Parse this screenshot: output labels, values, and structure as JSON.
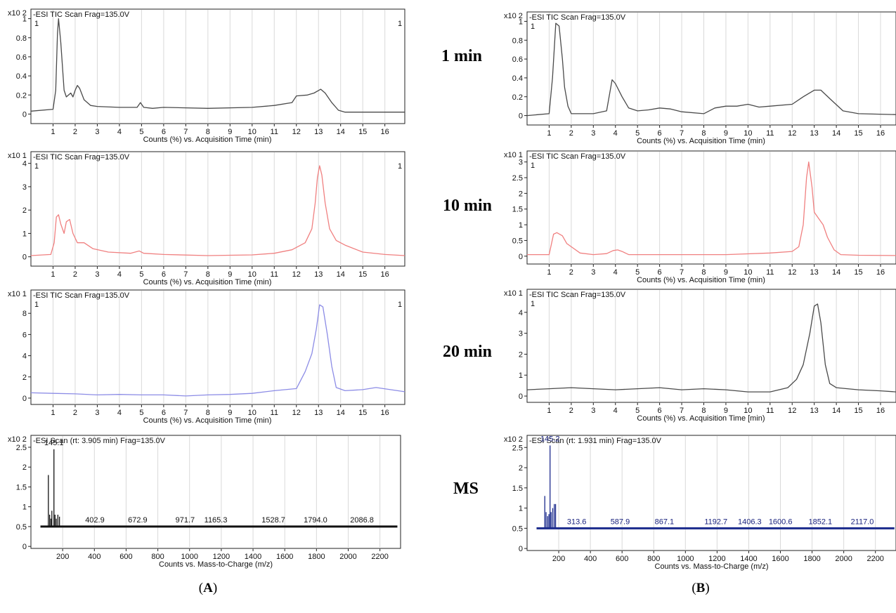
{
  "colors": {
    "black": "#4a4a4a",
    "red": "#f08080",
    "blue": "#8c8ce6",
    "ms_black": "#111111",
    "ms_blue": "#1a2a8c",
    "ms_label_blue": "#1a237e",
    "grid": "#d9d9d9"
  },
  "time_labels": [
    "1 min",
    "10 min",
    "20 min",
    "MS"
  ],
  "column_labels": {
    "a": "A",
    "b": "B"
  },
  "chart_data": [
    {
      "id": "A-1min",
      "type": "line",
      "title": "-ESI TIC Scan Frag=135.0V",
      "exponent": "x10 2",
      "marker_left": "1",
      "marker_right": "1",
      "xlabel": "Counts (%) vs. Acquisition Time (min)",
      "xlim": [
        0,
        16.9
      ],
      "ylim": [
        -0.1,
        1.1
      ],
      "x_ticks": [
        1,
        2,
        3,
        4,
        5,
        6,
        7,
        8,
        9,
        10,
        11,
        12,
        13,
        14,
        15,
        16
      ],
      "y_ticks": [
        0,
        0.2,
        0.4,
        0.6,
        0.8,
        1
      ],
      "y_tick_labels": [
        "0",
        "0.2",
        "0.4",
        "0.6",
        "0.8",
        "1"
      ],
      "color": "black",
      "x": [
        0,
        1.0,
        1.12,
        1.2,
        1.25,
        1.35,
        1.5,
        1.6,
        1.8,
        1.9,
        2.0,
        2.1,
        2.2,
        2.4,
        2.7,
        3.0,
        4.0,
        4.8,
        4.95,
        5.1,
        5.5,
        6.0,
        8.0,
        10.0,
        11.0,
        11.8,
        12.0,
        12.5,
        12.8,
        13.1,
        13.3,
        13.6,
        13.9,
        14.2,
        15.0,
        16.9
      ],
      "y": [
        0.03,
        0.05,
        0.25,
        0.85,
        1.0,
        0.75,
        0.25,
        0.18,
        0.22,
        0.18,
        0.25,
        0.3,
        0.27,
        0.15,
        0.09,
        0.08,
        0.07,
        0.07,
        0.12,
        0.07,
        0.06,
        0.07,
        0.06,
        0.07,
        0.09,
        0.12,
        0.19,
        0.2,
        0.22,
        0.26,
        0.22,
        0.12,
        0.04,
        0.02,
        0.02,
        0.02
      ]
    },
    {
      "id": "A-10min",
      "type": "line",
      "title": "-ESI TIC Scan Frag=135.0V",
      "exponent": "x10 1",
      "marker_left": "1",
      "marker_right": "1",
      "xlabel": "Counts (%) vs. Acquisition Time (min)",
      "xlim": [
        0,
        16.9
      ],
      "ylim": [
        -0.4,
        4.5
      ],
      "x_ticks": [
        1,
        2,
        3,
        4,
        5,
        6,
        7,
        8,
        9,
        10,
        11,
        12,
        13,
        14,
        15,
        16
      ],
      "y_ticks": [
        0,
        1,
        2,
        3,
        4
      ],
      "y_tick_labels": [
        "0",
        "1",
        "2",
        "3",
        "4"
      ],
      "color": "red",
      "x": [
        0,
        0.9,
        1.05,
        1.15,
        1.25,
        1.35,
        1.5,
        1.6,
        1.75,
        1.9,
        2.1,
        2.4,
        2.8,
        3.5,
        4.5,
        4.9,
        5.1,
        6.0,
        8.0,
        10.0,
        11.0,
        11.8,
        12.4,
        12.7,
        12.85,
        12.95,
        13.05,
        13.15,
        13.3,
        13.5,
        13.8,
        14.2,
        15.0,
        16.0,
        16.9
      ],
      "y": [
        0.05,
        0.1,
        0.6,
        1.7,
        1.8,
        1.4,
        1.0,
        1.5,
        1.6,
        1.0,
        0.6,
        0.6,
        0.35,
        0.2,
        0.15,
        0.25,
        0.15,
        0.1,
        0.05,
        0.08,
        0.15,
        0.3,
        0.6,
        1.2,
        2.3,
        3.4,
        3.9,
        3.5,
        2.3,
        1.2,
        0.7,
        0.5,
        0.2,
        0.1,
        0.05
      ]
    },
    {
      "id": "A-20min",
      "type": "line",
      "title": "-ESI TIC Scan Frag=135.0V",
      "exponent": "x10 1",
      "marker_left": "1",
      "marker_right": "1",
      "xlabel": "Counts (%) vs. Acquisition Time (min)",
      "xlim": [
        0,
        16.9
      ],
      "ylim": [
        -0.6,
        10.2
      ],
      "x_ticks": [
        1,
        2,
        3,
        4,
        5,
        6,
        7,
        8,
        9,
        10,
        11,
        12,
        13,
        14,
        15,
        16
      ],
      "y_ticks": [
        0,
        2,
        4,
        6,
        8
      ],
      "y_tick_labels": [
        "0",
        "2",
        "4",
        "6",
        "8"
      ],
      "color": "blue",
      "x": [
        0,
        1.0,
        2.0,
        3.0,
        4.0,
        5.0,
        6.0,
        7.0,
        8.0,
        9.0,
        10.0,
        11.0,
        12.0,
        12.4,
        12.7,
        12.9,
        13.05,
        13.2,
        13.4,
        13.6,
        13.8,
        14.2,
        15.0,
        15.6,
        16.9
      ],
      "y": [
        0.5,
        0.45,
        0.4,
        0.3,
        0.35,
        0.3,
        0.3,
        0.2,
        0.3,
        0.35,
        0.45,
        0.7,
        0.9,
        2.5,
        4.2,
        6.5,
        8.8,
        8.6,
        6.0,
        3.0,
        1.0,
        0.7,
        0.8,
        1.0,
        0.6
      ]
    },
    {
      "id": "A-MS",
      "type": "bar",
      "title": "-ESI Scan (rt: 3.905 min) Frag=135.0V",
      "exponent": "x10 2",
      "xlabel": "Counts vs. Mass-to-Charge (m/z)",
      "xlim": [
        0,
        2330
      ],
      "ylim": [
        -0.05,
        2.8
      ],
      "x_ticks": [
        200,
        400,
        600,
        800,
        1000,
        1200,
        1400,
        1600,
        1800,
        2000,
        2200
      ],
      "y_ticks": [
        0,
        0.5,
        1,
        1.5,
        2,
        2.5
      ],
      "y_tick_labels": [
        "0",
        "0.5",
        "1",
        "1.5",
        "2",
        "2.5"
      ],
      "color": "ms_black",
      "label_color": "ms_black",
      "baseline": 0.5,
      "baseline_range": [
        60,
        2310
      ],
      "peaks_x": [
        110,
        118,
        126,
        132,
        145.1,
        152,
        160,
        170,
        180
      ],
      "peaks_y": [
        1.8,
        0.8,
        0.7,
        0.9,
        2.45,
        0.8,
        0.7,
        0.8,
        0.75
      ],
      "labels": [
        {
          "x": 145.1,
          "y": 2.45,
          "text": "145.1"
        },
        {
          "x": 402.9,
          "y": 0.5,
          "text": "402.9"
        },
        {
          "x": 672.9,
          "y": 0.5,
          "text": "672.9"
        },
        {
          "x": 971.7,
          "y": 0.5,
          "text": "971.7"
        },
        {
          "x": 1165.3,
          "y": 0.5,
          "text": "1165.3"
        },
        {
          "x": 1528.7,
          "y": 0.5,
          "text": "1528.7"
        },
        {
          "x": 1794.0,
          "y": 0.5,
          "text": "1794.0"
        },
        {
          "x": 2086.8,
          "y": 0.5,
          "text": "2086.8"
        }
      ]
    },
    {
      "id": "B-1min",
      "type": "line",
      "title": "-ESI TIC Scan Frag=135.0V",
      "exponent": "x10 2",
      "marker_left": "1",
      "xlabel": "Counts (%) vs. Acquisition Time (min)",
      "xlim": [
        0,
        16.7
      ],
      "ylim": [
        -0.1,
        1.1
      ],
      "x_ticks": [
        1,
        2,
        3,
        4,
        5,
        6,
        7,
        8,
        9,
        10,
        11,
        12,
        13,
        14,
        15,
        16
      ],
      "y_ticks": [
        0,
        0.2,
        0.4,
        0.6,
        0.8,
        1
      ],
      "y_tick_labels": [
        "0",
        "0.2",
        "0.4",
        "0.6",
        "0.8",
        "1"
      ],
      "color": "black",
      "x": [
        0,
        1.0,
        1.15,
        1.3,
        1.45,
        1.6,
        1.7,
        1.85,
        2.0,
        3.0,
        3.6,
        3.85,
        4.0,
        4.3,
        4.6,
        5.0,
        5.5,
        6.0,
        6.5,
        7.0,
        8.0,
        8.5,
        9.0,
        9.5,
        10.0,
        10.5,
        11.0,
        12.0,
        12.5,
        13.0,
        13.3,
        13.7,
        14.3,
        15.0,
        16.7
      ],
      "y": [
        0.0,
        0.02,
        0.4,
        0.98,
        0.95,
        0.6,
        0.3,
        0.1,
        0.02,
        0.02,
        0.05,
        0.38,
        0.34,
        0.2,
        0.08,
        0.05,
        0.06,
        0.08,
        0.07,
        0.04,
        0.02,
        0.08,
        0.1,
        0.1,
        0.12,
        0.09,
        0.1,
        0.12,
        0.2,
        0.27,
        0.27,
        0.18,
        0.05,
        0.02,
        0.01
      ]
    },
    {
      "id": "B-10min",
      "type": "line",
      "title": "-ESI TIC Scan Frag=135.0V",
      "exponent": "x10 1",
      "marker_left": "1",
      "xlabel": "Counts (%) vs. Acquisition Time (min)",
      "xlim": [
        0,
        16.7
      ],
      "ylim": [
        -0.25,
        3.35
      ],
      "x_ticks": [
        1,
        2,
        3,
        4,
        5,
        6,
        7,
        8,
        9,
        10,
        11,
        12,
        13,
        14,
        15,
        16
      ],
      "y_ticks": [
        0,
        0.5,
        1,
        1.5,
        2,
        2.5,
        3
      ],
      "y_tick_labels": [
        "0",
        "0.5",
        "1",
        "1.5",
        "2",
        "2.5",
        "3"
      ],
      "color": "red",
      "x": [
        0,
        1.0,
        1.2,
        1.35,
        1.6,
        1.8,
        2.0,
        2.4,
        3.0,
        3.6,
        3.9,
        4.1,
        4.3,
        4.6,
        5.0,
        7.0,
        9.0,
        11.0,
        12.0,
        12.3,
        12.5,
        12.65,
        12.75,
        12.9,
        13.0,
        13.2,
        13.4,
        13.6,
        13.9,
        14.2,
        15.0,
        16.7
      ],
      "y": [
        0.05,
        0.05,
        0.7,
        0.75,
        0.65,
        0.4,
        0.3,
        0.1,
        0.05,
        0.08,
        0.18,
        0.2,
        0.15,
        0.05,
        0.05,
        0.05,
        0.05,
        0.1,
        0.15,
        0.3,
        1.0,
        2.5,
        3.0,
        2.2,
        1.4,
        1.2,
        1.0,
        0.6,
        0.2,
        0.05,
        0.03,
        0.02
      ]
    },
    {
      "id": "B-20min",
      "type": "line",
      "title": "-ESI TIC Scan Frag=135.0V",
      "exponent": "x10 1",
      "marker_left": "1",
      "xlabel": "Counts (%) vs. Acquisition Time [min)",
      "xlim": [
        0,
        16.7
      ],
      "ylim": [
        -0.3,
        5.1
      ],
      "x_ticks": [
        1,
        2,
        3,
        4,
        5,
        6,
        7,
        8,
        9,
        10,
        11,
        12,
        13,
        14,
        15,
        16
      ],
      "y_ticks": [
        0,
        1,
        2,
        3,
        4
      ],
      "y_tick_labels": [
        "0",
        "1",
        "2",
        "3",
        "4"
      ],
      "color": "black",
      "x": [
        0,
        1.0,
        2.0,
        3.0,
        4.0,
        5.0,
        6.0,
        7.0,
        8.0,
        9.0,
        10.0,
        11.0,
        11.8,
        12.2,
        12.5,
        12.8,
        13.0,
        13.15,
        13.3,
        13.5,
        13.7,
        14.0,
        15.0,
        16.0,
        16.7
      ],
      "y": [
        0.3,
        0.35,
        0.4,
        0.35,
        0.3,
        0.35,
        0.4,
        0.3,
        0.35,
        0.3,
        0.2,
        0.2,
        0.4,
        0.8,
        1.5,
        3.0,
        4.3,
        4.4,
        3.5,
        1.5,
        0.6,
        0.4,
        0.3,
        0.25,
        0.2
      ]
    },
    {
      "id": "B-MS",
      "type": "bar",
      "title": "-ESI Scan (rt: 1.931 min) Frag=135.0V",
      "exponent": "x10 2",
      "xlabel": "Counts vs. Mass-to-Charge (m/z)",
      "xlim": [
        0,
        2330
      ],
      "ylim": [
        -0.05,
        2.8
      ],
      "x_ticks": [
        200,
        400,
        600,
        800,
        1000,
        1200,
        1400,
        1600,
        1800,
        2000,
        2200
      ],
      "y_ticks": [
        0,
        0.5,
        1,
        1.5,
        2,
        2.5
      ],
      "y_tick_labels": [
        "0",
        "0.5",
        "1",
        "1.5",
        "2",
        "2.5"
      ],
      "color": "ms_blue",
      "label_color": "ms_label_blue",
      "baseline": 0.5,
      "baseline_range": [
        60,
        2320
      ],
      "peaks_x": [
        112,
        120,
        130,
        138,
        145.2,
        152,
        162,
        172,
        180
      ],
      "peaks_y": [
        1.3,
        0.9,
        0.8,
        0.85,
        2.55,
        0.9,
        1.0,
        1.1,
        1.1
      ],
      "labels": [
        {
          "x": 145.2,
          "y": 2.55,
          "text": "145.2"
        },
        {
          "x": 313.6,
          "y": 0.5,
          "text": "313.6"
        },
        {
          "x": 587.9,
          "y": 0.5,
          "text": "587.9"
        },
        {
          "x": 867.1,
          "y": 0.5,
          "text": "867.1"
        },
        {
          "x": 1192.7,
          "y": 0.5,
          "text": "1192.7"
        },
        {
          "x": 1406.3,
          "y": 0.5,
          "text": "1406.3"
        },
        {
          "x": 1600.6,
          "y": 0.5,
          "text": "1600.6"
        },
        {
          "x": 1852.1,
          "y": 0.5,
          "text": "1852.1"
        },
        {
          "x": 2117.0,
          "y": 0.5,
          "text": "2117.0"
        }
      ]
    }
  ]
}
